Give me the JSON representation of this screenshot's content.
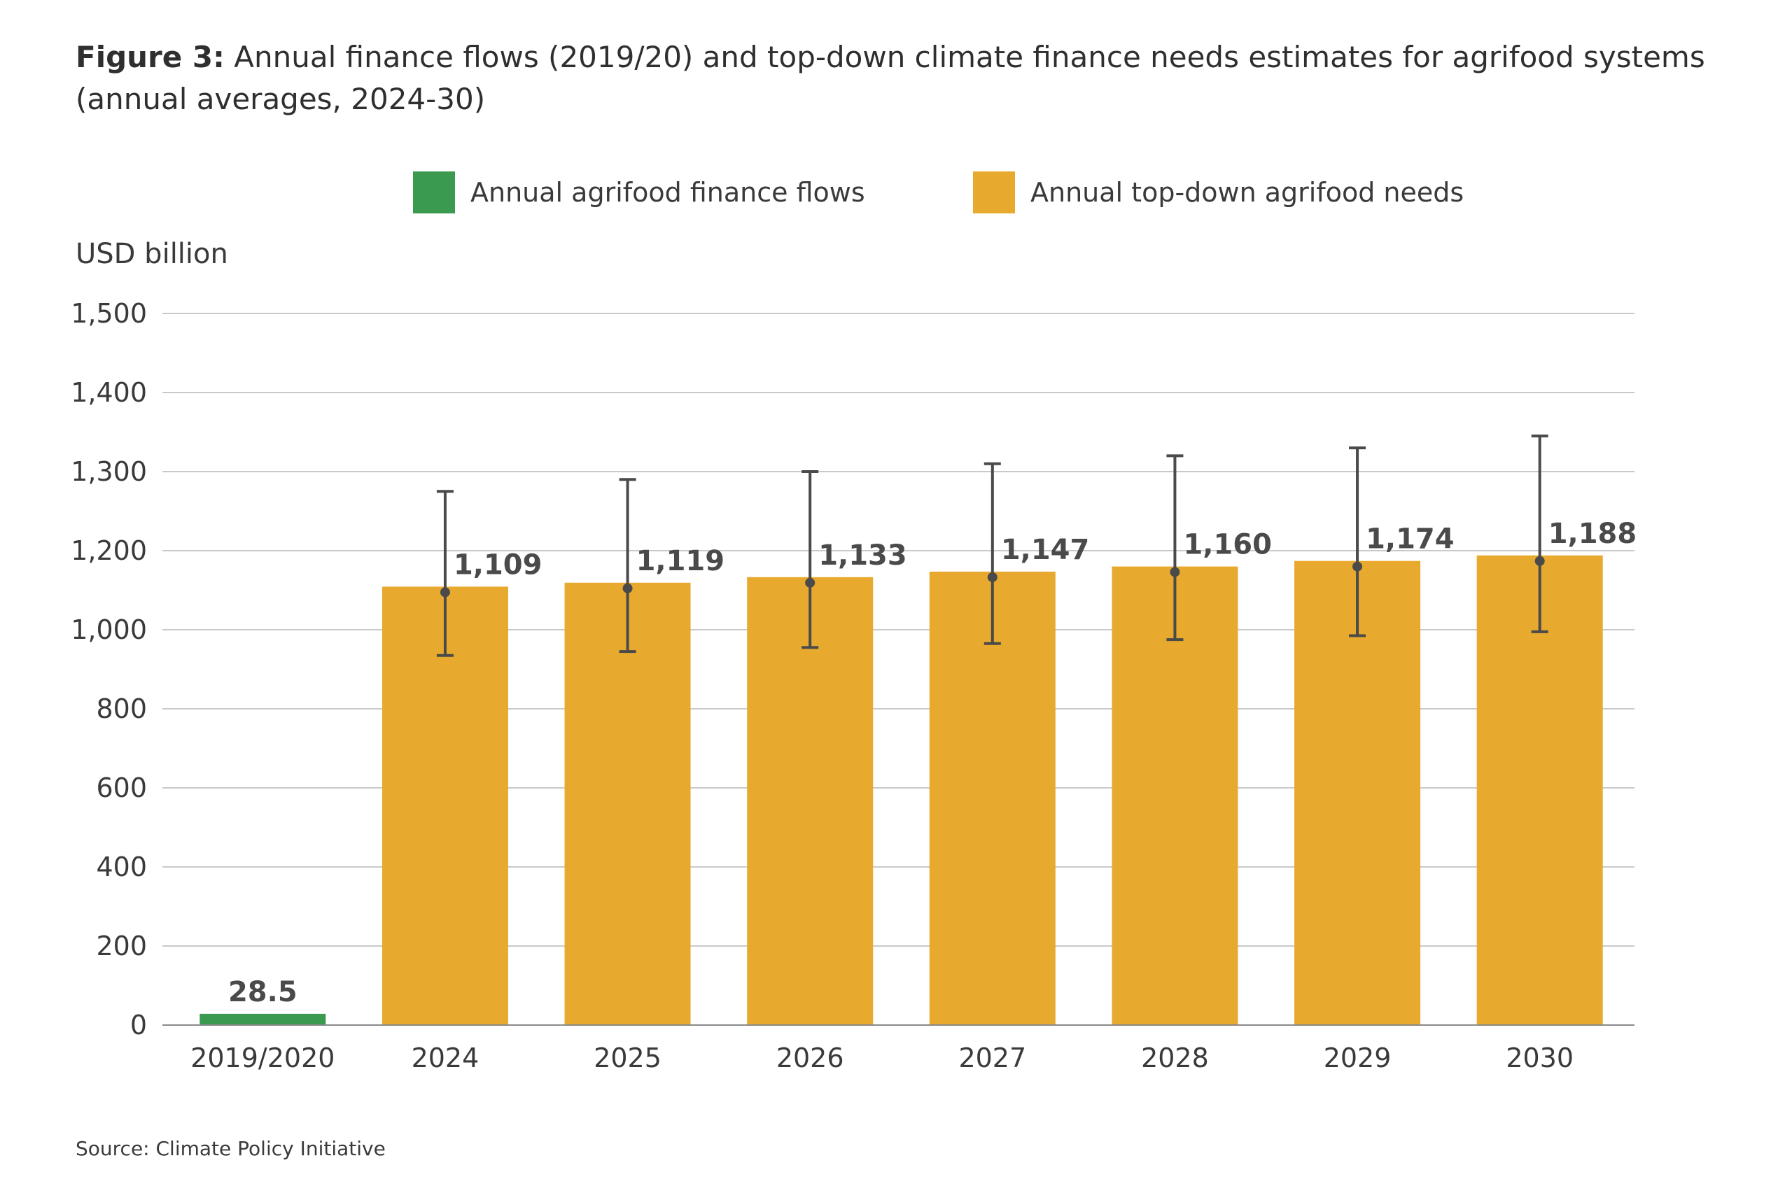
{
  "title": {
    "prefix": "Figure 3:",
    "text": "Annual finance flows (2019/20) and top-down climate finance needs estimates for agrifood systems (annual averages, 2024-30)"
  },
  "legend": [
    {
      "label": "Annual agrifood finance flows",
      "color": "#3a9a4f"
    },
    {
      "label": "Annual top-down agrifood needs",
      "color": "#e8aa2e"
    }
  ],
  "source": "Source: Climate Policy Initiative",
  "chart_data": {
    "type": "bar",
    "ylabel": "USD billion",
    "ylim": [
      0,
      1500
    ],
    "yticks": [
      0,
      200,
      400,
      600,
      800,
      1000,
      1200,
      1300,
      1400,
      1500
    ],
    "ytick_labels": [
      "0",
      "200",
      "400",
      "600",
      "800",
      "1,000",
      "1,200",
      "1,300",
      "1,400",
      "1,500"
    ],
    "categories": [
      "2019/2020",
      "2024",
      "2025",
      "2026",
      "2027",
      "2028",
      "2029",
      "2030"
    ],
    "series": [
      {
        "name": "Annual agrifood finance flows",
        "color": "#3a9a4f",
        "values": [
          28.5,
          null,
          null,
          null,
          null,
          null,
          null,
          null
        ],
        "labels": [
          "28.5",
          "",
          "",
          "",
          "",
          "",
          "",
          ""
        ]
      },
      {
        "name": "Annual top-down agrifood needs",
        "color": "#e8aa2e",
        "values": [
          null,
          1109,
          1119,
          1133,
          1147,
          1160,
          1174,
          1188
        ],
        "labels": [
          "",
          "1,109",
          "1,119",
          "1,133",
          "1,147",
          "1,160",
          "1,174",
          "1,188"
        ],
        "error_low": [
          null,
          935,
          945,
          955,
          965,
          975,
          985,
          995
        ],
        "error_high": [
          null,
          1275,
          1290,
          1300,
          1310,
          1320,
          1330,
          1345
        ]
      }
    ],
    "grid": true,
    "legend_position": "top"
  }
}
